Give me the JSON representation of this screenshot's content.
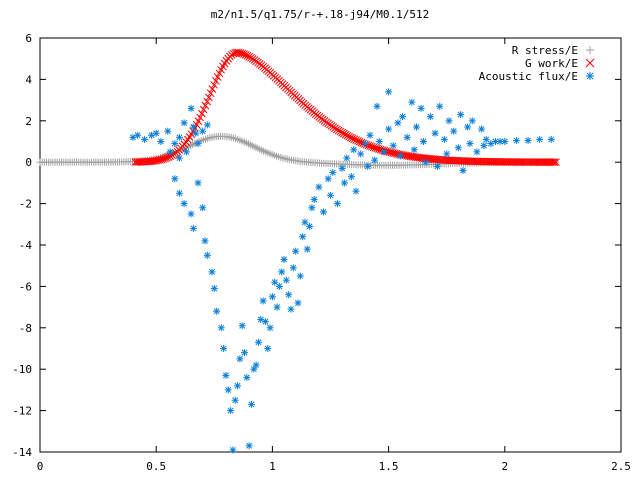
{
  "chart_data": {
    "type": "scatter",
    "title": "m2/n1.5/q1.75/r-+.18-j94/M0.1/512",
    "xlabel": "",
    "ylabel": "",
    "xlim": [
      0,
      2.5
    ],
    "ylim": [
      -14,
      6
    ],
    "x_ticks": [
      "0",
      "0.5",
      "1",
      "1.5",
      "2",
      "2.5"
    ],
    "y_ticks": [
      "6",
      "4",
      "2",
      "0",
      "-2",
      "-4",
      "-6",
      "-8",
      "-10",
      "-12",
      "-14"
    ],
    "grid": false,
    "legend_position": "top-right",
    "series": [
      {
        "name": "R stress/E",
        "color": "#a0a0a0",
        "marker": "plus",
        "x_range": [
          0.0,
          2.22
        ],
        "curve": "gaussian",
        "peak_x": 0.78,
        "peak_y": 1.25,
        "width": 0.2,
        "note_tail": "slightly negative about -0.15 near x=1.5"
      },
      {
        "name": "G work/E",
        "color": "#ff0000",
        "marker": "cross",
        "x_range": [
          0.41,
          2.22
        ],
        "curve": "skewed-peak",
        "peak_x": 0.85,
        "peak_y": 5.3
      },
      {
        "name": "Acoustic flux/E",
        "color": "#0a7fd8",
        "marker": "asterisk",
        "points": [
          [
            0.4,
            1.2
          ],
          [
            0.42,
            1.3
          ],
          [
            0.45,
            1.1
          ],
          [
            0.48,
            1.3
          ],
          [
            0.5,
            1.4
          ],
          [
            0.52,
            1.0
          ],
          [
            0.55,
            1.5
          ],
          [
            0.56,
            0.5
          ],
          [
            0.58,
            0.9
          ],
          [
            0.6,
            1.2
          ],
          [
            0.6,
            0.2
          ],
          [
            0.62,
            1.9
          ],
          [
            0.63,
            0.5
          ],
          [
            0.65,
            2.6
          ],
          [
            0.66,
            1.7
          ],
          [
            0.67,
            1.4
          ],
          [
            0.68,
            0.9
          ],
          [
            0.7,
            1.5
          ],
          [
            0.72,
            1.8
          ],
          [
            0.58,
            -0.8
          ],
          [
            0.6,
            -1.5
          ],
          [
            0.62,
            -2.0
          ],
          [
            0.65,
            -2.5
          ],
          [
            0.66,
            -3.2
          ],
          [
            0.68,
            -1.0
          ],
          [
            0.7,
            -2.2
          ],
          [
            0.71,
            -3.8
          ],
          [
            0.72,
            -4.5
          ],
          [
            0.74,
            -5.3
          ],
          [
            0.75,
            -6.1
          ],
          [
            0.76,
            -7.2
          ],
          [
            0.78,
            -8.0
          ],
          [
            0.79,
            -9.0
          ],
          [
            0.8,
            -10.3
          ],
          [
            0.81,
            -11.0
          ],
          [
            0.82,
            -12.0
          ],
          [
            0.83,
            -13.9
          ],
          [
            0.84,
            -11.5
          ],
          [
            0.85,
            -10.8
          ],
          [
            0.86,
            -9.5
          ],
          [
            0.87,
            -7.9
          ],
          [
            0.88,
            -9.2
          ],
          [
            0.89,
            -10.4
          ],
          [
            0.9,
            -13.7
          ],
          [
            0.91,
            -11.7
          ],
          [
            0.92,
            -10.0
          ],
          [
            0.93,
            -9.8
          ],
          [
            0.94,
            -8.7
          ],
          [
            0.95,
            -7.6
          ],
          [
            0.96,
            -6.7
          ],
          [
            0.97,
            -7.7
          ],
          [
            0.98,
            -9.0
          ],
          [
            0.99,
            -8.0
          ],
          [
            1.0,
            -6.5
          ],
          [
            1.01,
            -5.8
          ],
          [
            1.02,
            -7.0
          ],
          [
            1.03,
            -6.0
          ],
          [
            1.04,
            -5.3
          ],
          [
            1.05,
            -4.7
          ],
          [
            1.06,
            -5.7
          ],
          [
            1.07,
            -6.4
          ],
          [
            1.08,
            -7.1
          ],
          [
            1.09,
            -5.1
          ],
          [
            1.1,
            -4.3
          ],
          [
            1.11,
            -6.8
          ],
          [
            1.12,
            -5.5
          ],
          [
            1.13,
            -3.6
          ],
          [
            1.14,
            -2.9
          ],
          [
            1.15,
            -4.2
          ],
          [
            1.16,
            -3.1
          ],
          [
            1.17,
            -2.2
          ],
          [
            1.18,
            -1.8
          ],
          [
            1.2,
            -1.2
          ],
          [
            1.22,
            -2.4
          ],
          [
            1.24,
            -0.8
          ],
          [
            1.25,
            -1.6
          ],
          [
            1.26,
            -0.5
          ],
          [
            1.28,
            -2.0
          ],
          [
            1.3,
            -0.3
          ],
          [
            1.31,
            -1.0
          ],
          [
            1.32,
            0.2
          ],
          [
            1.34,
            -0.7
          ],
          [
            1.35,
            0.6
          ],
          [
            1.36,
            -1.4
          ],
          [
            1.38,
            0.4
          ],
          [
            1.4,
            0.9
          ],
          [
            1.41,
            -0.2
          ],
          [
            1.42,
            1.3
          ],
          [
            1.44,
            0.1
          ],
          [
            1.45,
            2.7
          ],
          [
            1.46,
            1.0
          ],
          [
            1.48,
            0.5
          ],
          [
            1.5,
            1.6
          ],
          [
            1.5,
            3.4
          ],
          [
            1.52,
            0.8
          ],
          [
            1.54,
            1.9
          ],
          [
            1.55,
            0.3
          ],
          [
            1.56,
            2.2
          ],
          [
            1.58,
            1.2
          ],
          [
            1.6,
            2.9
          ],
          [
            1.61,
            0.6
          ],
          [
            1.62,
            1.7
          ],
          [
            1.64,
            2.6
          ],
          [
            1.65,
            1.0
          ],
          [
            1.66,
            0.0
          ],
          [
            1.68,
            2.2
          ],
          [
            1.7,
            1.4
          ],
          [
            1.71,
            -0.2
          ],
          [
            1.72,
            2.7
          ],
          [
            1.74,
            1.1
          ],
          [
            1.75,
            0.4
          ],
          [
            1.76,
            2.0
          ],
          [
            1.78,
            1.5
          ],
          [
            1.8,
            0.7
          ],
          [
            1.81,
            2.3
          ],
          [
            1.82,
            -0.4
          ],
          [
            1.84,
            1.7
          ],
          [
            1.85,
            0.9
          ],
          [
            1.86,
            2.0
          ],
          [
            1.88,
            0.5
          ],
          [
            1.9,
            1.6
          ],
          [
            1.91,
            0.8
          ],
          [
            1.92,
            1.1
          ],
          [
            1.94,
            0.9
          ],
          [
            1.96,
            1.0
          ],
          [
            1.98,
            1.0
          ],
          [
            2.0,
            1.0
          ],
          [
            2.05,
            1.05
          ],
          [
            2.1,
            1.05
          ],
          [
            2.15,
            1.1
          ],
          [
            2.2,
            1.1
          ]
        ]
      }
    ]
  }
}
